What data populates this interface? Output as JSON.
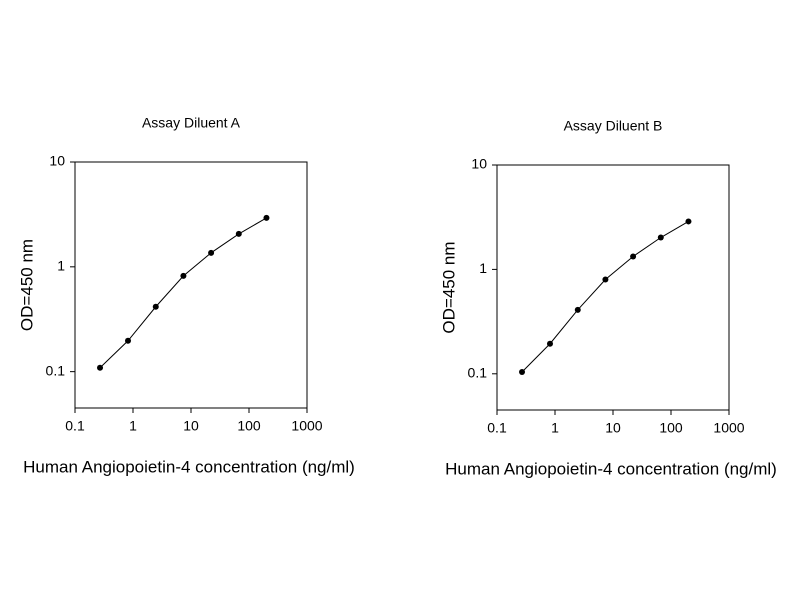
{
  "chart_data": [
    {
      "type": "line",
      "title": "Assay Diluent A",
      "x_label": "Human Angiopoietin-4 concentration (ng/ml)",
      "y_label": "OD=450 nm",
      "xscale": "log",
      "yscale": "log",
      "color": "#000000",
      "x": [
        0.27,
        0.82,
        2.47,
        7.4,
        22.2,
        66.7,
        200
      ],
      "values": [
        0.109,
        0.197,
        0.416,
        0.82,
        1.36,
        2.06,
        2.93
      ],
      "xlim": [
        0.1,
        1000
      ],
      "ylim": [
        0.045,
        10
      ],
      "xticks": [
        0.1,
        1,
        10,
        100,
        1000
      ],
      "yticks": [
        0.1,
        1,
        10
      ]
    },
    {
      "type": "line",
      "title": "Assay Diluent B",
      "x_label": "Human Angiopoietin-4 concentration (ng/ml)",
      "y_label": "OD=450 nm",
      "xscale": "log",
      "yscale": "log",
      "color": "#000000",
      "x": [
        0.27,
        0.82,
        2.47,
        7.4,
        22.2,
        66.7,
        200
      ],
      "values": [
        0.104,
        0.194,
        0.41,
        0.8,
        1.33,
        2.02,
        2.88
      ],
      "xlim": [
        0.1,
        1000
      ],
      "ylim": [
        0.045,
        10
      ],
      "xticks": [
        0.1,
        1,
        10,
        100,
        1000
      ],
      "yticks": [
        0.1,
        1,
        10
      ]
    }
  ]
}
